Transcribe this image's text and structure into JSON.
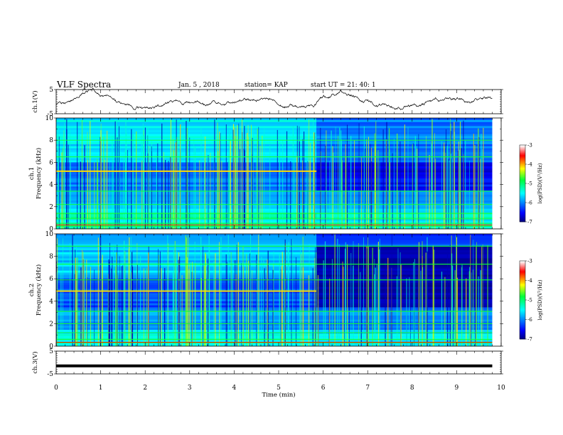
{
  "header": {
    "title": "VLF Spectra",
    "date": "Jan. 5 , 2018",
    "station": "station= KAP",
    "start": "start UT = 21: 40: 1"
  },
  "chart_data": [
    {
      "type": "line",
      "name": "ch1-waveform",
      "ylabel": "ch.1(V)",
      "ylim": [
        -5,
        5
      ],
      "yticks": [
        "5",
        "-5"
      ],
      "x_range_min": [
        0,
        9.8
      ]
    },
    {
      "type": "heatmap",
      "name": "ch1-spectrogram",
      "ylabel_top": "ch.1",
      "ylabel": "Frequency (kHz)",
      "ylim": [
        0,
        10
      ],
      "yticks": [
        "0",
        "2",
        "4",
        "6",
        "8",
        "10"
      ],
      "colorbar": {
        "range": [
          -7,
          -3
        ],
        "ticks": [
          "-3",
          "-4",
          "-5",
          "-6",
          "-7"
        ],
        "label": "log(PSD)(V²/Hz)"
      }
    },
    {
      "type": "heatmap",
      "name": "ch2-spectrogram",
      "ylabel_top": "ch.2",
      "ylabel": "Frequency (kHz)",
      "ylim": [
        0,
        10
      ],
      "yticks": [
        "0",
        "2",
        "4",
        "6",
        "8",
        "10"
      ],
      "colorbar": {
        "range": [
          -7,
          -3
        ],
        "ticks": [
          "-3",
          "-4",
          "-5",
          "-6",
          "-7"
        ],
        "label": "log(PSD)(V²/Hz)"
      }
    },
    {
      "type": "line",
      "name": "ch3-waveform",
      "ylabel": "ch.3(V)",
      "ylim": [
        -5,
        5
      ],
      "yticks": [
        "5",
        "-5"
      ],
      "value": -1.5,
      "x_range_min": [
        0,
        9.8
      ]
    }
  ],
  "xaxis": {
    "label": "Time (min)",
    "range": [
      0,
      10
    ],
    "ticks": [
      "0",
      "1",
      "2",
      "3",
      "4",
      "5",
      "6",
      "7",
      "8",
      "9",
      "10"
    ]
  },
  "colors": {
    "axis": "#000000",
    "colormap": [
      "#00008f",
      "#0000ff",
      "#00ffff",
      "#00ff00",
      "#ffff00",
      "#ff0000",
      "#ffffff"
    ]
  }
}
